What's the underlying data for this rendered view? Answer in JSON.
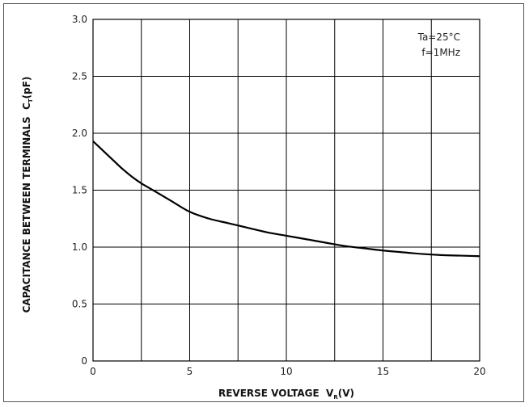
{
  "chart_data": {
    "type": "line",
    "title": "",
    "xlabel": {
      "main": "REVERSE VOLTAGE  V",
      "sub": "R",
      "unit": "(V)"
    },
    "ylabel": {
      "main": "CAPACITANCE BETWEEN TERMINALS  C",
      "sub": "T",
      "unit": "(pF)"
    },
    "xlim": [
      0,
      20
    ],
    "ylim": [
      0,
      3.0
    ],
    "xticks": [
      0,
      2.5,
      5,
      7.5,
      10,
      12.5,
      15,
      17.5,
      20
    ],
    "xtick_labels": [
      "0",
      "",
      "5",
      "",
      "10",
      "",
      "15",
      "",
      "20"
    ],
    "yticks": [
      0,
      0.5,
      1.0,
      1.5,
      2.0,
      2.5,
      3.0
    ],
    "ytick_labels": [
      "0",
      "0.5",
      "1.0",
      "1.5",
      "2.0",
      "2.5",
      "3.0"
    ],
    "grid": true,
    "annotations": [
      "Ta=25°C",
      "f=1MHz"
    ],
    "series": [
      {
        "x": [
          0,
          0.5,
          1,
          1.5,
          2,
          2.5,
          3,
          4,
          5,
          6,
          7,
          8,
          9,
          10,
          11,
          12,
          13,
          14,
          15,
          16,
          17,
          18,
          19,
          20
        ],
        "y": [
          1.93,
          1.85,
          1.77,
          1.69,
          1.62,
          1.56,
          1.51,
          1.41,
          1.31,
          1.25,
          1.21,
          1.17,
          1.13,
          1.1,
          1.07,
          1.04,
          1.01,
          0.99,
          0.97,
          0.955,
          0.94,
          0.93,
          0.925,
          0.92
        ]
      }
    ]
  }
}
